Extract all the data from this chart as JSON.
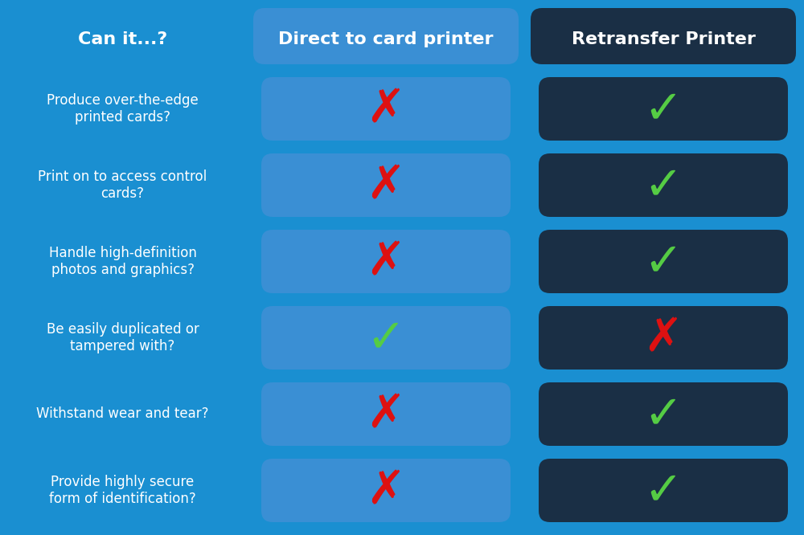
{
  "bg_color": "#1a8fd1",
  "col1_bg": "#3a8fd4",
  "col2_bg": "#1a2f45",
  "text_color": "#ffffff",
  "check_color": "#55cc44",
  "cross_color": "#dd1111",
  "col_header_left": "Direct to card printer",
  "col_header_right": "Retransfer Printer",
  "row_label_header": "Can it...?",
  "rows": [
    "Produce over-the-edge\nprinted cards?",
    "Print on to access control\ncards?",
    "Handle high-definition\nphotos and graphics?",
    "Be easily duplicated or\ntampered with?",
    "Withstand wear and tear?",
    "Provide highly secure\nform of identification?"
  ],
  "dtc_results": [
    false,
    false,
    false,
    true,
    false,
    false
  ],
  "retransfer_results": [
    true,
    true,
    true,
    false,
    true,
    true
  ],
  "fig_width": 10.0,
  "fig_height": 6.66,
  "dpi": 100
}
